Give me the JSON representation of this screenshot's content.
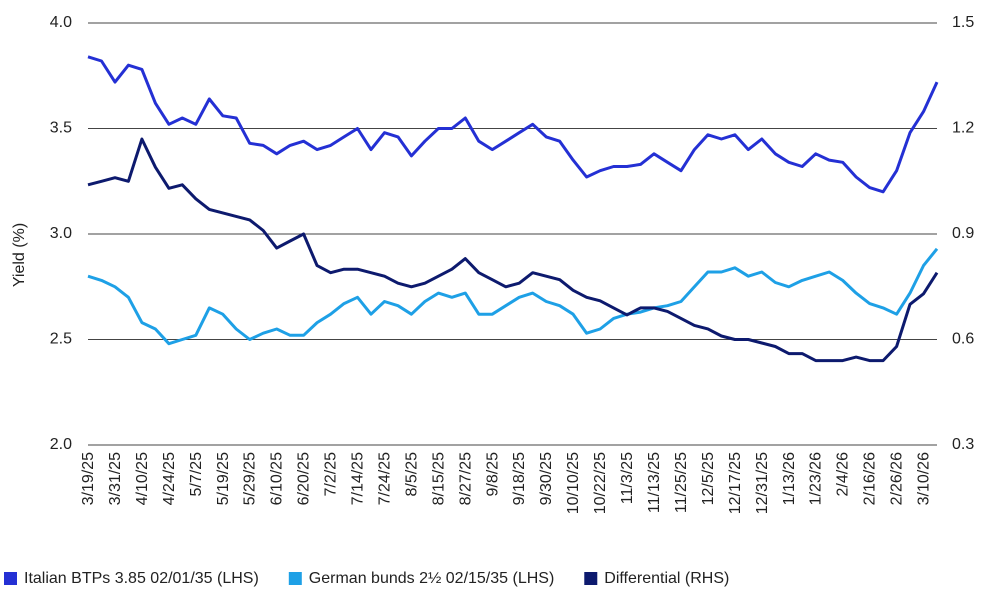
{
  "chart_data": {
    "type": "line",
    "y_label": "Yield (%)",
    "categories": [
      "3/19/25",
      null,
      "3/31/25",
      null,
      "4/10/25",
      null,
      "4/24/25",
      null,
      "5/7/25",
      null,
      "5/19/25",
      null,
      "5/29/25",
      null,
      "6/10/25",
      null,
      "6/20/25",
      null,
      "7/2/25",
      null,
      "7/14/25",
      null,
      "7/24/25",
      null,
      "8/5/25",
      null,
      "8/15/25",
      null,
      "8/27/25",
      null,
      "9/8/25",
      null,
      "9/18/25",
      null,
      "9/30/25",
      null,
      "10/10/25",
      null,
      "10/22/25",
      null,
      "11/3/25",
      null,
      "11/13/25",
      null,
      "11/25/25",
      null,
      "12/5/25",
      null,
      "12/17/25",
      null,
      "12/31/25",
      null,
      "1/13/26",
      null,
      "1/23/26",
      null,
      "2/4/26",
      null,
      "2/16/26",
      null,
      "2/26/26",
      null,
      "3/10/26",
      null
    ],
    "series": [
      {
        "name": "Italian BTPs 3.85 02/01/35 (LHS)",
        "color": "#2430d4",
        "values": [
          3.84,
          3.82,
          3.72,
          3.8,
          3.78,
          3.62,
          3.52,
          3.55,
          3.52,
          3.64,
          3.56,
          3.55,
          3.43,
          3.42,
          3.38,
          3.42,
          3.44,
          3.4,
          3.42,
          3.46,
          3.5,
          3.4,
          3.48,
          3.46,
          3.37,
          3.44,
          3.5,
          3.5,
          3.55,
          3.44,
          3.4,
          3.44,
          3.48,
          3.52,
          3.46,
          3.44,
          3.35,
          3.27,
          3.3,
          3.32,
          3.32,
          3.33,
          3.38,
          3.34,
          3.3,
          3.4,
          3.47,
          3.45,
          3.47,
          3.4,
          3.45,
          3.38,
          3.34,
          3.32,
          3.38,
          3.35,
          3.34,
          3.27,
          3.22,
          3.2,
          3.3,
          3.48,
          3.58,
          3.72
        ]
      },
      {
        "name": "German bunds 2½ 02/15/35 (LHS)",
        "color": "#1ea0e6",
        "values": [
          2.8,
          2.78,
          2.75,
          2.7,
          2.58,
          2.55,
          2.48,
          2.5,
          2.52,
          2.65,
          2.62,
          2.55,
          2.5,
          2.53,
          2.55,
          2.52,
          2.52,
          2.58,
          2.62,
          2.67,
          2.7,
          2.62,
          2.68,
          2.66,
          2.62,
          2.68,
          2.72,
          2.7,
          2.72,
          2.62,
          2.62,
          2.66,
          2.7,
          2.72,
          2.68,
          2.66,
          2.62,
          2.53,
          2.55,
          2.6,
          2.62,
          2.63,
          2.65,
          2.66,
          2.68,
          2.75,
          2.82,
          2.82,
          2.84,
          2.8,
          2.82,
          2.77,
          2.75,
          2.78,
          2.8,
          2.82,
          2.78,
          2.72,
          2.67,
          2.65,
          2.62,
          2.72,
          2.85,
          2.93
        ]
      },
      {
        "name": "Differential (RHS)",
        "color": "#0d1a6e",
        "axis": "y2",
        "values": [
          1.04,
          1.05,
          1.06,
          1.05,
          1.17,
          1.09,
          1.03,
          1.04,
          1.0,
          0.97,
          0.96,
          0.95,
          0.94,
          0.91,
          0.86,
          0.88,
          0.9,
          0.81,
          0.79,
          0.8,
          0.8,
          0.79,
          0.78,
          0.76,
          0.75,
          0.76,
          0.78,
          0.8,
          0.83,
          0.79,
          0.77,
          0.75,
          0.76,
          0.79,
          0.78,
          0.77,
          0.74,
          0.72,
          0.71,
          0.69,
          0.67,
          0.69,
          0.69,
          0.68,
          0.66,
          0.64,
          0.63,
          0.61,
          0.6,
          0.6,
          0.59,
          0.58,
          0.56,
          0.56,
          0.54,
          0.54,
          0.54,
          0.55,
          0.54,
          0.54,
          0.58,
          0.7,
          0.73,
          0.79
        ]
      }
    ],
    "ylim": [
      2.0,
      4.0
    ],
    "yticks": [
      {
        "value": 2.0,
        "label": "2.0"
      },
      2.5,
      {
        "value": 3.0,
        "label": "3.0"
      },
      3.5,
      {
        "value": 4.0,
        "label": "4.0"
      }
    ],
    "y2lim": [
      0.3,
      1.5
    ],
    "y2ticks": [
      0.3,
      0.6,
      0.9,
      1.2,
      1.5
    ],
    "grid": true
  }
}
